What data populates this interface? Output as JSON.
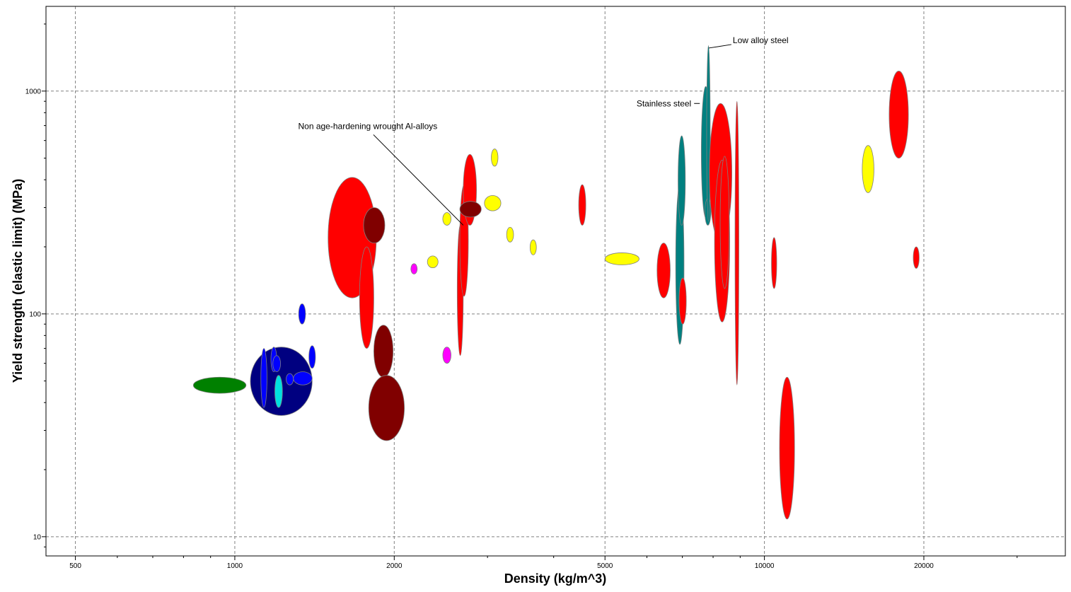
{
  "chart_data": {
    "type": "scatter",
    "subtype": "material-property-bubble-chart",
    "xlabel": "Density (kg/m^3)",
    "ylabel": "Yield strength (elastic limit) (MPa)",
    "xscale": "log",
    "yscale": "log",
    "xlim": [
      440,
      37000
    ],
    "ylim": [
      8.2,
      2400
    ],
    "grid": true,
    "x_ticks": [
      500,
      1000,
      2000,
      5000,
      10000,
      20000
    ],
    "x_tick_labels": [
      "500",
      "1000",
      "2000",
      "5000",
      "10000",
      "20000"
    ],
    "y_ticks": [
      10,
      100,
      1000
    ],
    "y_tick_labels": [
      "10",
      "100",
      "1000"
    ],
    "colors": {
      "red": "#ff0000",
      "dark_red": "#800000",
      "navy": "#000080",
      "blue": "#0000ff",
      "cyan": "#00e0e0",
      "green": "#008000",
      "teal": "#008080",
      "yellow": "#ffff00",
      "magenta": "#ff00ff"
    },
    "bubbles": [
      {
        "x": [
          835,
          1050
        ],
        "y": [
          44,
          52
        ],
        "color": "green"
      },
      {
        "x": [
          1070,
          1400
        ],
        "y": [
          35,
          71
        ],
        "color": "navy"
      },
      {
        "x": [
          1120,
          1150
        ],
        "y": [
          38,
          70
        ],
        "color": "blue"
      },
      {
        "x": [
          1170,
          1200
        ],
        "y": [
          55,
          71
        ],
        "color": "blue"
      },
      {
        "x": [
          1180,
          1220
        ],
        "y": [
          55,
          65
        ],
        "color": "blue"
      },
      {
        "x": [
          1250,
          1290
        ],
        "y": [
          48,
          54
        ],
        "color": "blue"
      },
      {
        "x": [
          1290,
          1400
        ],
        "y": [
          48,
          55
        ],
        "color": "blue"
      },
      {
        "x": [
          1380,
          1420
        ],
        "y": [
          57,
          72
        ],
        "color": "blue"
      },
      {
        "x": [
          1190,
          1230
        ],
        "y": [
          38,
          53
        ],
        "color": "cyan"
      },
      {
        "x": [
          1320,
          1360
        ],
        "y": [
          90,
          111
        ],
        "color": "blue"
      },
      {
        "x": [
          1500,
          1850
        ],
        "y": [
          118,
          410
        ],
        "color": "red"
      },
      {
        "x": [
          1720,
          1830
        ],
        "y": [
          70,
          200
        ],
        "color": "red"
      },
      {
        "x": [
          1750,
          1920
        ],
        "y": [
          208,
          300
        ],
        "color": "dark_red"
      },
      {
        "x": [
          1830,
          1990
        ],
        "y": [
          52,
          89
        ],
        "color": "dark_red"
      },
      {
        "x": [
          1790,
          2090
        ],
        "y": [
          27,
          53
        ],
        "color": "dark_red"
      },
      {
        "x": [
          2150,
          2210
        ],
        "y": [
          151,
          168
        ],
        "color": "magenta"
      },
      {
        "x": [
          2310,
          2420
        ],
        "y": [
          161,
          182
        ],
        "color": "yellow"
      },
      {
        "x": [
          2470,
          2560
        ],
        "y": [
          250,
          285
        ],
        "color": "yellow"
      },
      {
        "x": [
          2470,
          2560
        ],
        "y": [
          60,
          71
        ],
        "color": "magenta"
      },
      {
        "x": [
          2630,
          2700
        ],
        "y": [
          65,
          250
        ],
        "color": "red"
      },
      {
        "x": [
          2660,
          2760
        ],
        "y": [
          120,
          380
        ],
        "color": "red"
      },
      {
        "x": [
          2700,
          2860
        ],
        "y": [
          250,
          520
        ],
        "color": "red"
      },
      {
        "x": [
          2660,
          2920
        ],
        "y": [
          272,
          320
        ],
        "color": "dark_red"
      },
      {
        "x": [
          2960,
          3180
        ],
        "y": [
          290,
          340
        ],
        "color": "yellow"
      },
      {
        "x": [
          3050,
          3140
        ],
        "y": [
          460,
          550
        ],
        "color": "yellow"
      },
      {
        "x": [
          3260,
          3360
        ],
        "y": [
          210,
          245
        ],
        "color": "yellow"
      },
      {
        "x": [
          3610,
          3710
        ],
        "y": [
          184,
          215
        ],
        "color": "yellow"
      },
      {
        "x": [
          4460,
          4600
        ],
        "y": [
          250,
          380
        ],
        "color": "red"
      },
      {
        "x": [
          5000,
          5800
        ],
        "y": [
          166,
          188
        ],
        "color": "yellow"
      },
      {
        "x": [
          6270,
          6640
        ],
        "y": [
          118,
          208
        ],
        "color": "red"
      },
      {
        "x": [
          6800,
          7050
        ],
        "y": [
          73,
          380
        ],
        "color": "teal"
      },
      {
        "x": [
          6870,
          7090
        ],
        "y": [
          250,
          630
        ],
        "color": "teal"
      },
      {
        "x": [
          6900,
          7120
        ],
        "y": [
          90,
          145
        ],
        "color": "red"
      },
      {
        "x": [
          7600,
          7900
        ],
        "y": [
          270,
          1050
        ],
        "color": "teal"
      },
      {
        "x": [
          7720,
          7920
        ],
        "y": [
          250,
          330
        ],
        "color": "teal"
      },
      {
        "x": [
          7780,
          7900
        ],
        "y": [
          260,
          1600
        ],
        "color": "teal"
      },
      {
        "x": [
          7870,
          8680
        ],
        "y": [
          210,
          880
        ],
        "color": "red"
      },
      {
        "x": [
          8050,
          8600
        ],
        "y": [
          92,
          490
        ],
        "color": "red"
      },
      {
        "x": [
          8250,
          8580
        ],
        "y": [
          130,
          510
        ],
        "color": "red"
      },
      {
        "x": [
          8800,
          8950
        ],
        "y": [
          48,
          900
        ],
        "color": "red"
      },
      {
        "x": [
          10310,
          10550
        ],
        "y": [
          130,
          220
        ],
        "color": "red"
      },
      {
        "x": [
          10680,
          11400
        ],
        "y": [
          12,
          52
        ],
        "color": "red"
      },
      {
        "x": [
          15300,
          16100
        ],
        "y": [
          350,
          570
        ],
        "color": "yellow"
      },
      {
        "x": [
          17200,
          18700
        ],
        "y": [
          500,
          1230
        ],
        "color": "red"
      },
      {
        "x": [
          19100,
          19600
        ],
        "y": [
          160,
          200
        ],
        "color": "red"
      }
    ],
    "annotations": [
      {
        "text": "Low alloy steel",
        "anchor_x": 7850,
        "anchor_y": 1560,
        "side": "right"
      },
      {
        "text": "Stainless steel",
        "anchor_x": 7550,
        "anchor_y": 880,
        "side": "left"
      },
      {
        "text": "Non age-hardening wrought Al-alloys",
        "anchor_x": 2700,
        "anchor_y": 250,
        "side": "above-left"
      }
    ]
  }
}
